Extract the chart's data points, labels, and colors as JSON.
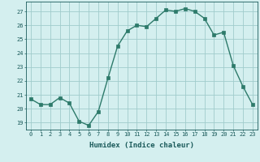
{
  "x": [
    0,
    1,
    2,
    3,
    4,
    5,
    6,
    7,
    8,
    9,
    10,
    11,
    12,
    13,
    14,
    15,
    16,
    17,
    18,
    19,
    20,
    21,
    22,
    23
  ],
  "y": [
    20.7,
    20.3,
    20.3,
    20.8,
    20.4,
    19.1,
    18.8,
    19.8,
    22.2,
    24.5,
    25.6,
    26.0,
    25.9,
    26.5,
    27.1,
    27.0,
    27.2,
    27.0,
    26.5,
    25.3,
    25.5,
    23.1,
    21.6,
    20.3
  ],
  "line_color": "#2d7a6a",
  "marker_color": "#2d7a6a",
  "bg_color": "#d4efef",
  "grid_color": "#a0cccc",
  "xlabel": "Humidex (Indice chaleur)",
  "ylabel_ticks": [
    19,
    20,
    21,
    22,
    23,
    24,
    25,
    26,
    27
  ],
  "xlim": [
    -0.5,
    23.5
  ],
  "ylim": [
    18.5,
    27.7
  ],
  "xlabel_color": "#1a5a5a",
  "tick_color": "#1a5a5a",
  "font_family": "monospace",
  "tick_fontsize": 5.0,
  "xlabel_fontsize": 6.5,
  "linewidth": 1.0,
  "markersize": 2.5
}
